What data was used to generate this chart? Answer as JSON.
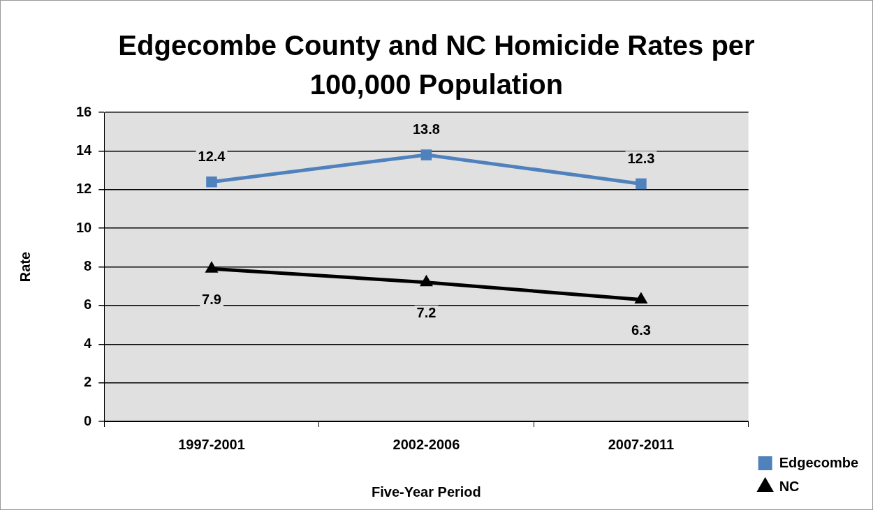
{
  "chart_data": {
    "type": "line",
    "title": "Edgecombe County and NC Homicide Rates per 100,000 Population",
    "xlabel": "Five-Year Period",
    "ylabel": "Rate",
    "categories": [
      "1997-2001",
      "2002-2006",
      "2007-2011"
    ],
    "series": [
      {
        "name": "Edgecombe",
        "color": "#4f81bd",
        "values": [
          12.4,
          13.8,
          12.3
        ],
        "marker": "square"
      },
      {
        "name": "NC",
        "color": "#000000",
        "values": [
          7.9,
          7.2,
          6.3
        ],
        "marker": "triangle"
      }
    ],
    "ylim": [
      0,
      16
    ],
    "yticks": [
      0,
      2,
      4,
      6,
      8,
      10,
      12,
      14,
      16
    ],
    "grid": "y",
    "legend": "bottom right",
    "data_labels": true,
    "line_style": "solid"
  }
}
